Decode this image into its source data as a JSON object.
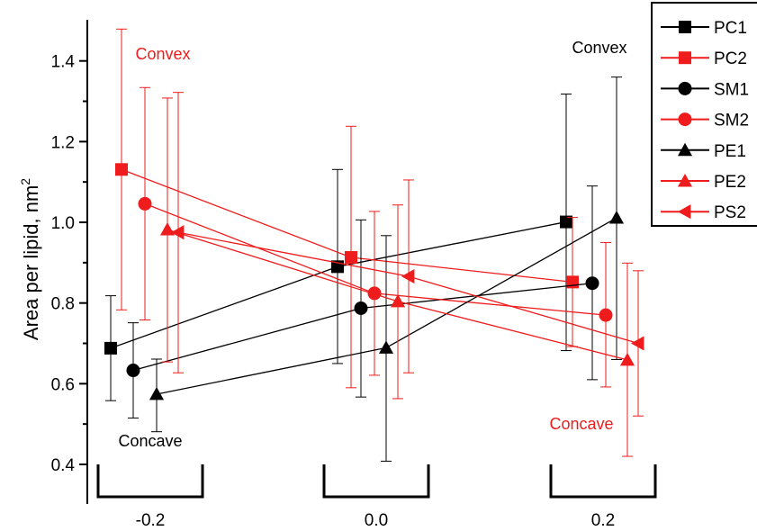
{
  "chart_data": {
    "type": "scatter",
    "ylabel": "Area per lipid, nm",
    "ylabel_superscript": "2",
    "xlabel": "",
    "ylim": [
      0.4,
      1.5
    ],
    "y_ticks": [
      "0.4",
      "0.6",
      "0.8",
      "1.0",
      "1.2",
      "1.4"
    ],
    "x_groups": [
      "-0.2",
      "0.0",
      "0.2"
    ],
    "annotations": [
      {
        "text": "Convex",
        "color": "#ee1c1c",
        "group": "-0.2",
        "position": "upper"
      },
      {
        "text": "Concave",
        "color": "#000000",
        "group": "-0.2",
        "position": "lower"
      },
      {
        "text": "Convex",
        "color": "#000000",
        "group": "0.2",
        "position": "upper"
      },
      {
        "text": "Concave",
        "color": "#ee1c1c",
        "group": "0.2",
        "position": "lower"
      }
    ],
    "legend_position": "top-right",
    "series": [
      {
        "name": "PC1",
        "color": "#000000",
        "marker": "square",
        "values": [
          0.688,
          0.89,
          1.001
        ],
        "error_low": [
          0.558,
          0.65,
          0.682
        ],
        "error_high": [
          0.818,
          1.131,
          1.318
        ]
      },
      {
        "name": "PC2",
        "color": "#ee1c1c",
        "marker": "square",
        "values": [
          1.131,
          0.913,
          0.852
        ],
        "error_low": [
          0.783,
          0.59,
          0.692
        ],
        "error_high": [
          1.479,
          1.238,
          1.012
        ]
      },
      {
        "name": "SM1",
        "color": "#000000",
        "marker": "circle",
        "values": [
          0.633,
          0.787,
          0.849
        ],
        "error_low": [
          0.515,
          0.567,
          0.61
        ],
        "error_high": [
          0.751,
          1.006,
          1.09
        ]
      },
      {
        "name": "SM2",
        "color": "#ee1c1c",
        "marker": "circle",
        "values": [
          1.046,
          0.824,
          0.77
        ],
        "error_low": [
          0.758,
          0.621,
          0.592
        ],
        "error_high": [
          1.334,
          1.027,
          0.95
        ]
      },
      {
        "name": "PE1",
        "color": "#000000",
        "marker": "triangle-up",
        "values": [
          0.574,
          0.689,
          1.011
        ],
        "error_low": [
          0.481,
          0.408,
          0.66
        ],
        "error_high": [
          0.661,
          0.967,
          1.36
        ]
      },
      {
        "name": "PE2",
        "color": "#ee1c1c",
        "marker": "triangle-up",
        "values": [
          0.982,
          0.804,
          0.659
        ],
        "error_low": [
          0.654,
          0.563,
          0.42
        ],
        "error_high": [
          1.308,
          1.043,
          0.899
        ]
      },
      {
        "name": "PS2",
        "color": "#ee1c1c",
        "marker": "triangle-left",
        "values": [
          0.975,
          0.866,
          0.7
        ],
        "error_low": [
          0.627,
          0.627,
          0.52
        ],
        "error_high": [
          1.322,
          1.105,
          0.88
        ]
      }
    ]
  }
}
